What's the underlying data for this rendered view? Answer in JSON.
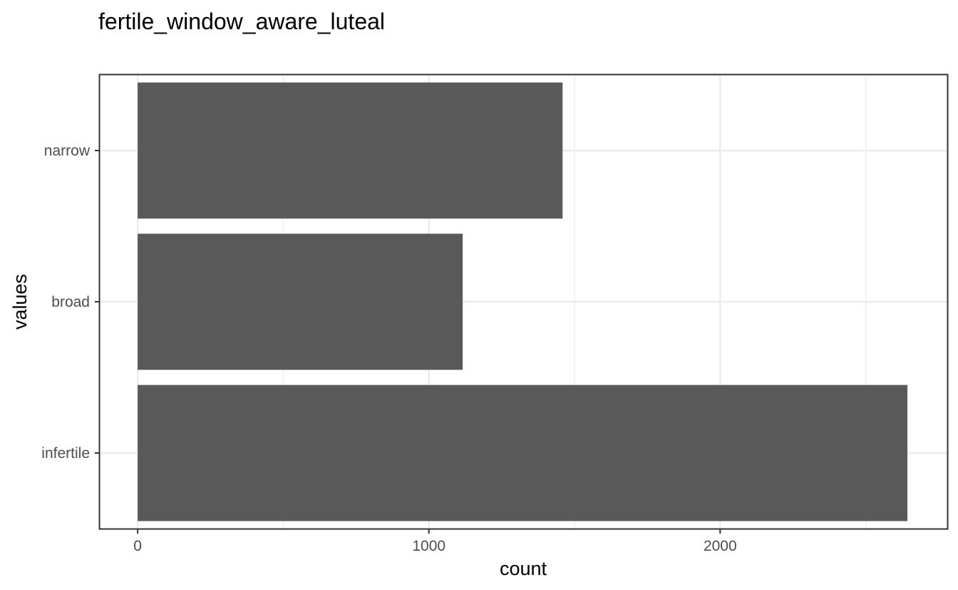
{
  "chart_data": {
    "type": "bar",
    "orientation": "horizontal",
    "title": "fertile_window_aware_luteal",
    "xlabel": "count",
    "ylabel": "values",
    "categories": [
      "infertile",
      "broad",
      "narrow"
    ],
    "values": [
      2643,
      1116,
      1459
    ],
    "xlim": [
      -130,
      2780
    ],
    "x_ticks": [
      0,
      1000,
      2000
    ],
    "x_tick_labels": [
      "0",
      "1000",
      "2000"
    ],
    "grid": true,
    "legend": "none",
    "bar_color": "#595959",
    "gridline_color": "#ebebeb",
    "panel_border_color": "#333333"
  }
}
